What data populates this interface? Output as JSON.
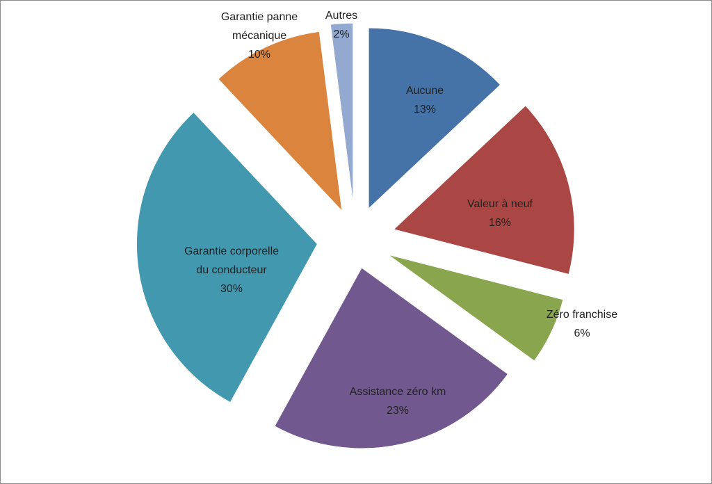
{
  "chart_data": {
    "type": "pie",
    "title": "",
    "exploded": true,
    "legend": "none",
    "slices": [
      {
        "name": "Aucune",
        "value": 13,
        "label_lines": [
          "Aucune",
          "13%"
        ],
        "color": "#4572a7"
      },
      {
        "name": "Valeur à neuf",
        "value": 16,
        "label_lines": [
          "Valeur à neuf",
          "16%"
        ],
        "color": "#aa4643"
      },
      {
        "name": "Zéro franchise",
        "value": 6,
        "label_lines": [
          "Zéro franchise",
          "6%"
        ],
        "color": "#89a54e"
      },
      {
        "name": "Assistance zéro km",
        "value": 23,
        "label_lines": [
          "Assistance zéro km",
          "23%"
        ],
        "color": "#71588f"
      },
      {
        "name": "Garantie corporelle du conducteur",
        "value": 30,
        "label_lines": [
          "Garantie corporelle",
          "du conducteur",
          "30%"
        ],
        "color": "#4198af"
      },
      {
        "name": "Garantie panne mécanique",
        "value": 10,
        "label_lines": [
          "Garantie panne",
          "mécanique",
          "10%"
        ],
        "color": "#db843d"
      },
      {
        "name": "Autres",
        "value": 2,
        "label_lines": [
          "Autres",
          "2%"
        ],
        "color": "#93a9cf"
      }
    ]
  }
}
